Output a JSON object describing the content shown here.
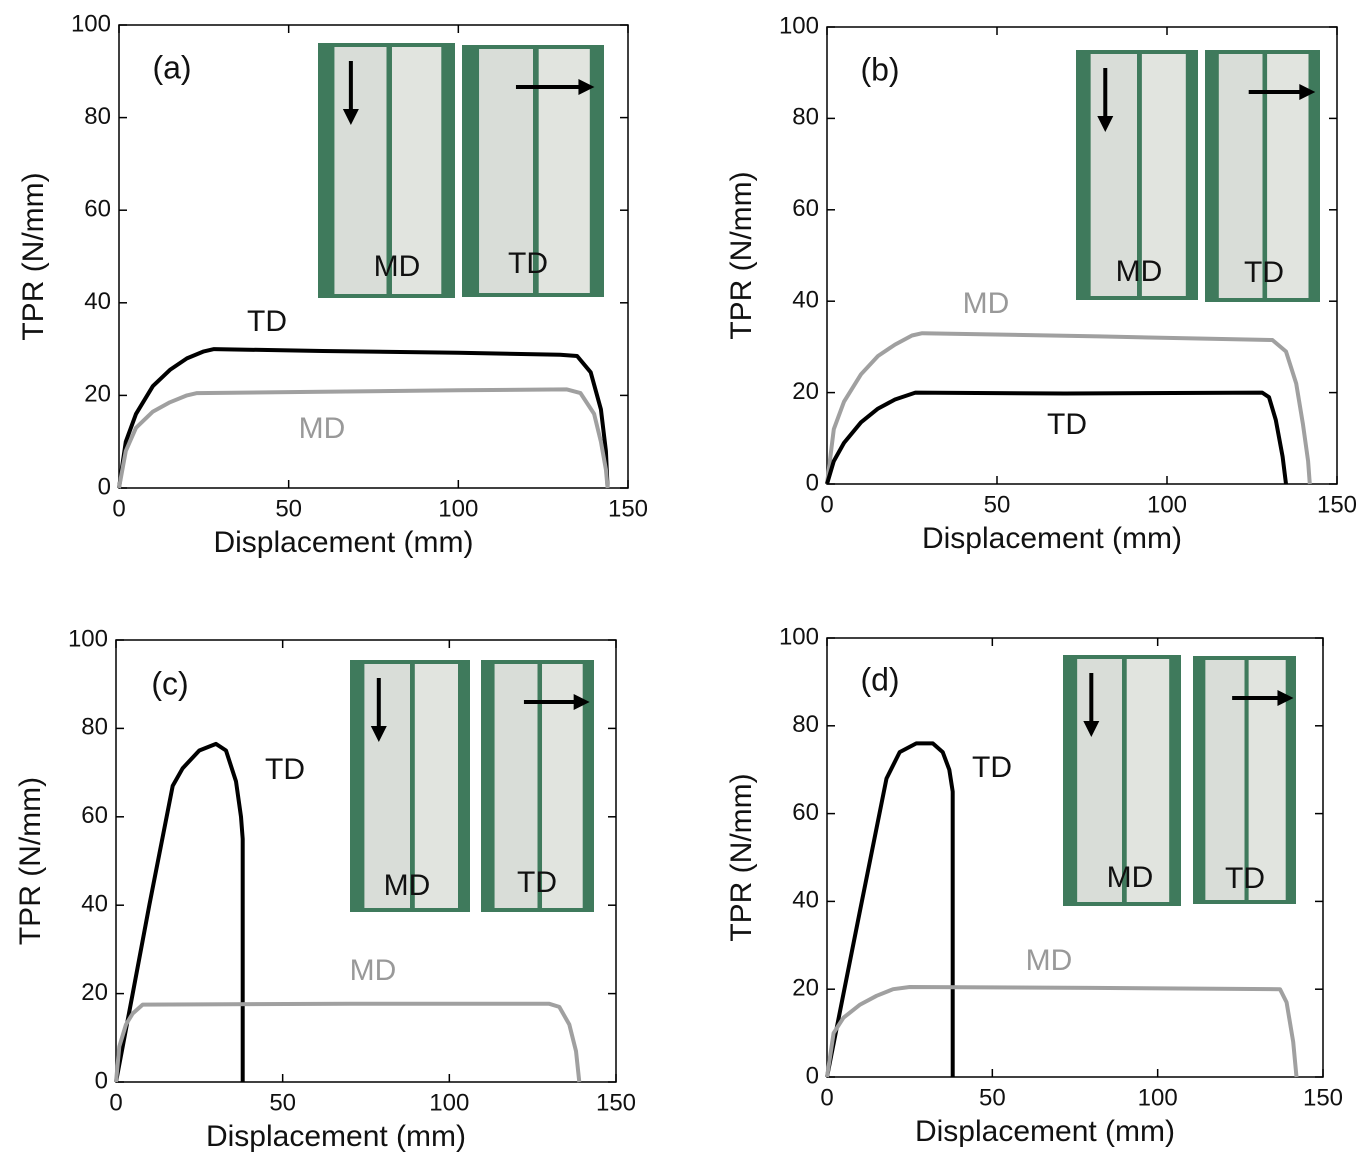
{
  "chart_data": [
    {
      "type": "line",
      "panel": "(a)",
      "x_label": "Displacement (mm)",
      "y_label": "TPR (N/mm)",
      "xlim": [
        0,
        150
      ],
      "ylim": [
        0,
        100
      ],
      "xticks": [
        0,
        50,
        100,
        150
      ],
      "yticks": [
        0,
        20,
        40,
        60,
        80,
        100
      ],
      "inset_labels": [
        "MD",
        "TD"
      ],
      "series": [
        {
          "name": "TD",
          "color": "#000000",
          "x": [
            0,
            2,
            5,
            10,
            15,
            20,
            25,
            28,
            60,
            100,
            130,
            135,
            139,
            142,
            143.5,
            144
          ],
          "values": [
            0,
            10,
            16,
            22,
            25.5,
            28,
            29.5,
            30,
            29.6,
            29.2,
            28.8,
            28.5,
            25,
            17,
            8,
            0
          ]
        },
        {
          "name": "MD",
          "color": "#a0a0a0",
          "x": [
            0,
            2,
            5,
            10,
            15,
            20,
            23,
            60,
            100,
            132,
            136,
            140,
            142,
            143.5,
            144
          ],
          "values": [
            0,
            8,
            13,
            16.5,
            18.5,
            20,
            20.5,
            20.8,
            21.1,
            21.3,
            20.5,
            16,
            10,
            4,
            0
          ]
        }
      ]
    },
    {
      "type": "line",
      "panel": "(b)",
      "x_label": "Displacement (mm)",
      "y_label": "TPR (N/mm)",
      "xlim": [
        0,
        150
      ],
      "ylim": [
        0,
        100
      ],
      "xticks": [
        0,
        50,
        100,
        150
      ],
      "yticks": [
        0,
        20,
        40,
        60,
        80,
        100
      ],
      "inset_labels": [
        "MD",
        "TD"
      ],
      "series": [
        {
          "name": "MD",
          "color": "#a0a0a0",
          "x": [
            0,
            2,
            5,
            10,
            15,
            20,
            25,
            28,
            80,
            131,
            135,
            138,
            140,
            141.5,
            142
          ],
          "values": [
            0,
            12,
            18,
            24,
            28,
            30.5,
            32.5,
            33,
            32.3,
            31.5,
            29,
            22,
            13,
            5,
            0
          ]
        },
        {
          "name": "TD",
          "color": "#000000",
          "x": [
            0,
            2,
            5,
            10,
            15,
            20,
            26,
            70,
            128,
            130,
            132,
            134,
            135
          ],
          "values": [
            0,
            5,
            9,
            13.5,
            16.5,
            18.5,
            20,
            19.8,
            20,
            19,
            14,
            6,
            0
          ]
        }
      ]
    },
    {
      "type": "line",
      "panel": "(c)",
      "x_label": "Displacement (mm)",
      "y_label": "TPR (N/mm)",
      "xlim": [
        0,
        150
      ],
      "ylim": [
        0,
        100
      ],
      "xticks": [
        0,
        50,
        100,
        150
      ],
      "yticks": [
        0,
        20,
        40,
        60,
        80,
        100
      ],
      "inset_labels": [
        "MD",
        "TD"
      ],
      "series": [
        {
          "name": "TD",
          "color": "#000000",
          "x": [
            0,
            5,
            10,
            17,
            20,
            25,
            30,
            33,
            36,
            37.5,
            38,
            38
          ],
          "values": [
            0,
            20,
            40,
            67,
            71,
            75,
            76.5,
            75,
            68,
            60,
            55,
            0
          ]
        },
        {
          "name": "MD",
          "color": "#a0a0a0",
          "x": [
            0,
            1,
            3,
            5,
            8,
            70,
            130,
            133,
            136,
            138,
            139
          ],
          "values": [
            0,
            8,
            13,
            15.5,
            17.5,
            17.7,
            17.7,
            17,
            13,
            7,
            0
          ]
        }
      ]
    },
    {
      "type": "line",
      "panel": "(d)",
      "x_label": "Displacement (mm)",
      "y_label": "TPR (N/mm)",
      "xlim": [
        0,
        150
      ],
      "ylim": [
        0,
        100
      ],
      "xticks": [
        0,
        50,
        100,
        150
      ],
      "yticks": [
        0,
        20,
        40,
        60,
        80,
        100
      ],
      "inset_labels": [
        "MD",
        "TD"
      ],
      "series": [
        {
          "name": "TD",
          "color": "#000000",
          "x": [
            0,
            5,
            10,
            18,
            22,
            27,
            32,
            35,
            37,
            38,
            38
          ],
          "values": [
            0,
            19,
            38,
            68,
            74,
            76,
            76,
            74,
            70,
            65,
            0
          ]
        },
        {
          "name": "MD",
          "color": "#a0a0a0",
          "x": [
            0,
            2,
            5,
            10,
            15,
            20,
            25,
            80,
            137,
            139,
            141,
            142
          ],
          "values": [
            0,
            10,
            13.5,
            16.5,
            18.5,
            20,
            20.5,
            20.3,
            20,
            17,
            8,
            0
          ]
        }
      ]
    }
  ]
}
